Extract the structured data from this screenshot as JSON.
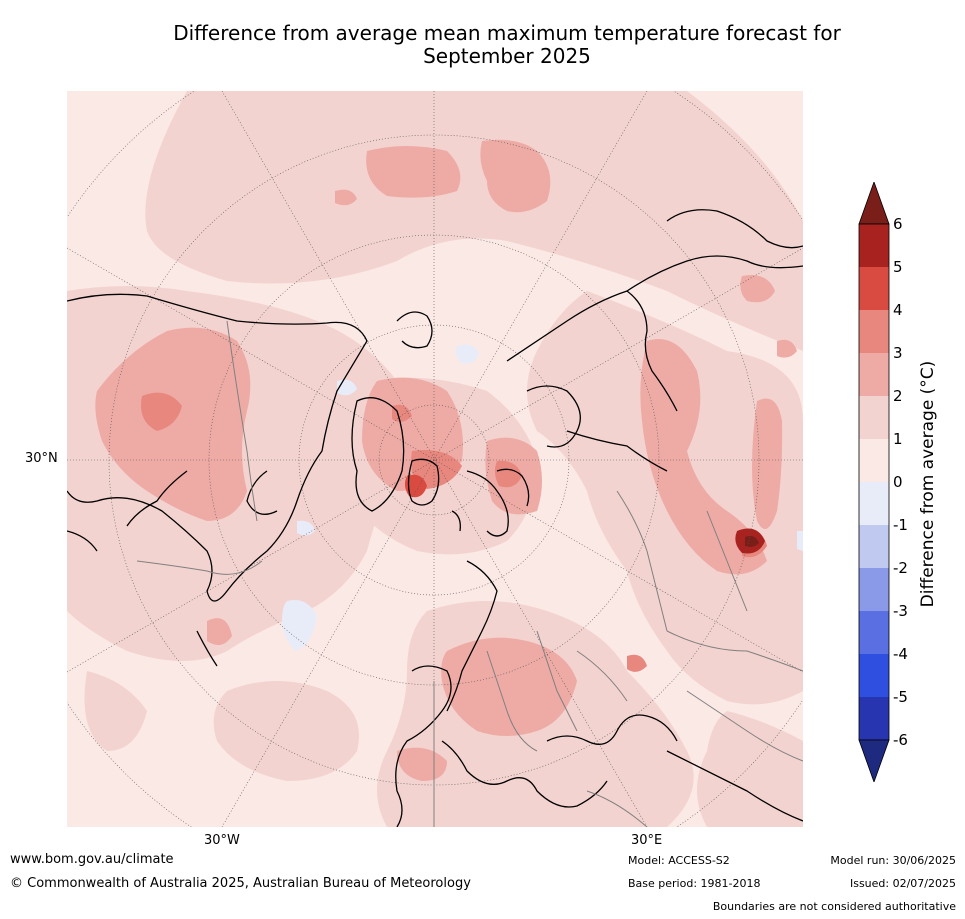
{
  "title": {
    "line1": "Difference from average mean maximum temperature forecast for",
    "line2": "September 2025"
  },
  "map": {
    "projection": "north-polar-stereographic",
    "lat_label": "30°N",
    "lon_labels": [
      "30°W",
      "30°E"
    ],
    "land_outline_color": "#000000",
    "border_color": "#808080",
    "graticule_color": "#555555"
  },
  "colorbar": {
    "label": "Difference from average (°C)",
    "ticks": [
      "6",
      "5",
      "4",
      "3",
      "2",
      "1",
      "0",
      "-1",
      "-2",
      "-3",
      "-4",
      "-5",
      "-6"
    ],
    "colors_top_to_bottom": [
      "#7a1e1a",
      "#a8231f",
      "#d94b40",
      "#e8877e",
      "#eeaba5",
      "#f3d3cf",
      "#fbe9e6",
      "#e8ecf9",
      "#c0c9ef",
      "#8a9ae8",
      "#5a6fe2",
      "#2f4fe0",
      "#2736b0",
      "#1e2a80"
    ]
  },
  "footer": {
    "website": "www.bom.gov.au/climate",
    "copyright": "© Commonwealth of Australia 2025, Australian Bureau of Meteorology",
    "model": "Model: ACCESS-S2",
    "base_period": "Base period: 1981-2018",
    "model_run": "Model run: 30/06/2025",
    "issued": "Issued: 02/07/2025",
    "disclaimer": "Boundaries are not considered authoritative"
  }
}
